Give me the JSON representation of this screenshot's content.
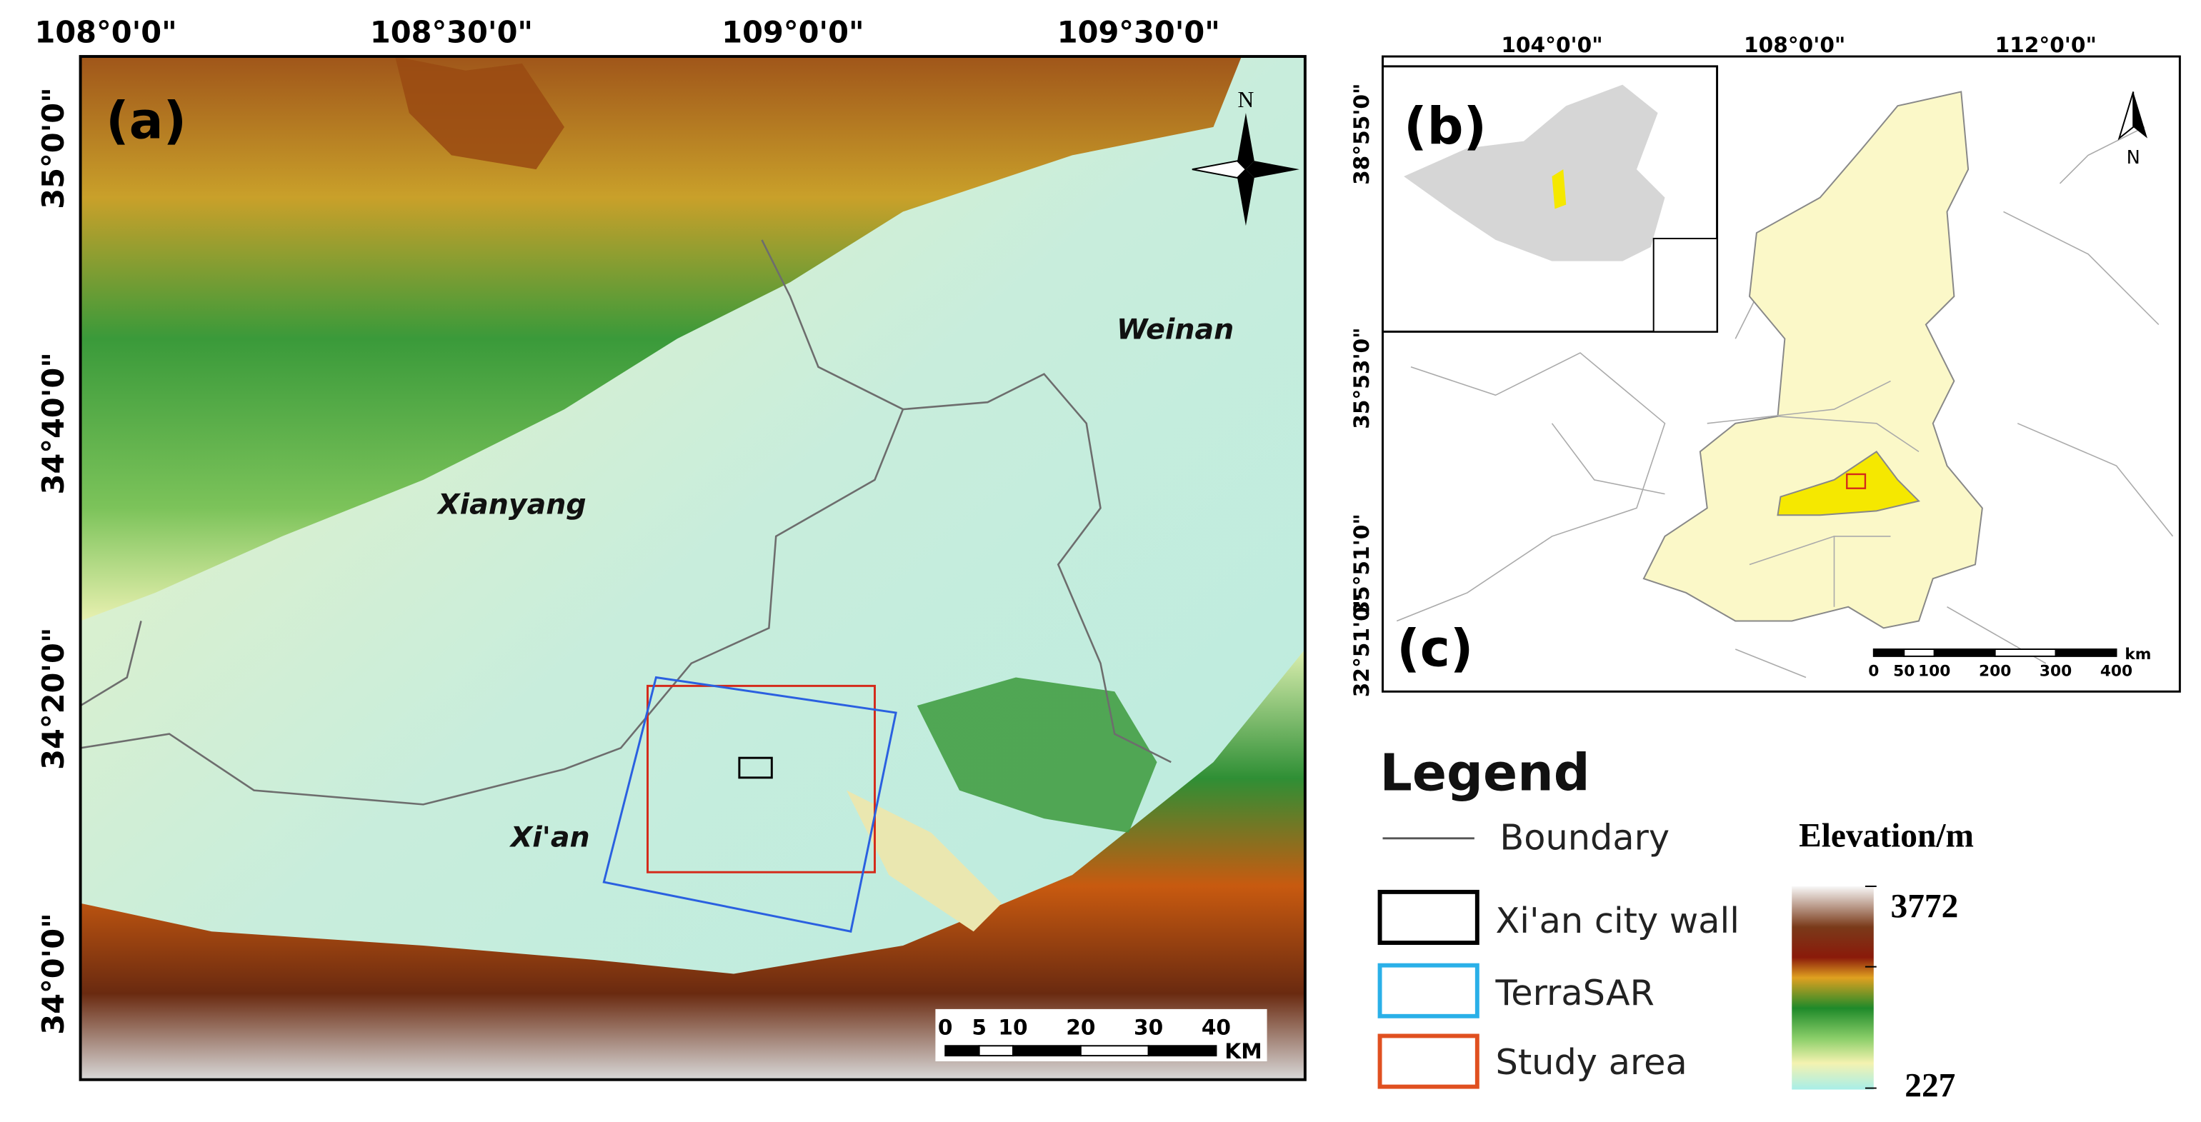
{
  "panel_a": {
    "label": "(a)",
    "x_labels": [
      "108°0'0\"",
      "108°30'0\"",
      "109°0'0\"",
      "109°30'0\""
    ],
    "y_labels": [
      "35°0'0\"",
      "34°40'0\"",
      "34°20'0\"",
      "34°0'0\""
    ],
    "places": [
      "Weinan",
      "Xianyang",
      "Xi'an"
    ],
    "north": "N",
    "scale": {
      "ticks": [
        0,
        5,
        10,
        20,
        30,
        40
      ],
      "unit": "KM"
    }
  },
  "panel_b": {
    "label": "(b)"
  },
  "panel_c": {
    "label": "(c)",
    "x_labels": [
      "104°0'0\"",
      "108°0'0\"",
      "112°0'0\""
    ],
    "y_labels": [
      "38°55'0\"",
      "35°53'0\"",
      "35°51'0\"",
      "32°51'0\""
    ],
    "north": "N",
    "scale": {
      "ticks": [
        0,
        50,
        100,
        200,
        300,
        400
      ],
      "unit": "km"
    }
  },
  "legend": {
    "title": "Legend",
    "items": [
      "Boundary",
      "Xi'an city wall",
      "TerraSAR",
      "Study area"
    ],
    "elevation": {
      "title": "Elevation/m",
      "max": 3772,
      "min": 227
    }
  }
}
